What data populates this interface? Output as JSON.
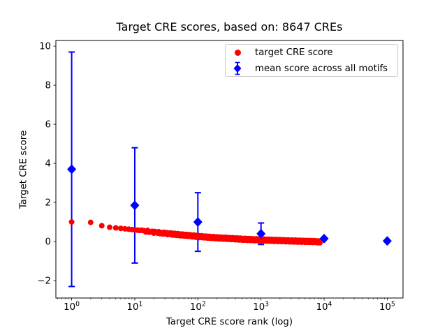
{
  "chart_data": {
    "type": "scatter",
    "title": "Target CRE scores, based on: 8647 CREs",
    "xlabel": "Target CRE score rank (log)",
    "ylabel": "Target CRE score",
    "x_scale": "log",
    "y_scale": "linear",
    "grid": false,
    "legend_position": "upper right",
    "x_tick_exponents": [
      0,
      1,
      2,
      3,
      4,
      5
    ],
    "y_ticks": [
      -2,
      0,
      2,
      4,
      6,
      8,
      10
    ],
    "xlim_log10": [
      -0.25,
      5.25
    ],
    "ylim": [
      -2.89,
      10.29
    ],
    "colors": {
      "target": "#ff0000",
      "mean": "#0000ff",
      "axis": "#000000",
      "legend_border": "#cccccc"
    },
    "series": [
      {
        "name": "target CRE score",
        "marker": "circle",
        "color": "#ff0000",
        "n_points": 8647,
        "points_sampled": [
          [
            1,
            1.0
          ],
          [
            2,
            0.98
          ],
          [
            3,
            0.81
          ],
          [
            4,
            0.73
          ],
          [
            5,
            0.7
          ],
          [
            7,
            0.65
          ],
          [
            10,
            0.6
          ],
          [
            15,
            0.53
          ],
          [
            20,
            0.48
          ],
          [
            30,
            0.42
          ],
          [
            50,
            0.35
          ],
          [
            70,
            0.31
          ],
          [
            100,
            0.26
          ],
          [
            150,
            0.22
          ],
          [
            200,
            0.19
          ],
          [
            300,
            0.16
          ],
          [
            500,
            0.12
          ],
          [
            700,
            0.1
          ],
          [
            1000,
            0.08
          ],
          [
            1500,
            0.06
          ],
          [
            2000,
            0.05
          ],
          [
            3000,
            0.03
          ],
          [
            5000,
            0.01
          ],
          [
            7000,
            0.0
          ],
          [
            8647,
            -0.02
          ]
        ]
      },
      {
        "name": "mean score across all motifs",
        "marker": "diamond",
        "color": "#0000ff",
        "x": [
          1,
          10,
          100,
          1000,
          10000,
          100000
        ],
        "y": [
          3.7,
          1.85,
          1.0,
          0.4,
          0.15,
          0.03
        ],
        "yerr": [
          6.0,
          2.95,
          1.5,
          0.55,
          0,
          0
        ]
      }
    ]
  }
}
